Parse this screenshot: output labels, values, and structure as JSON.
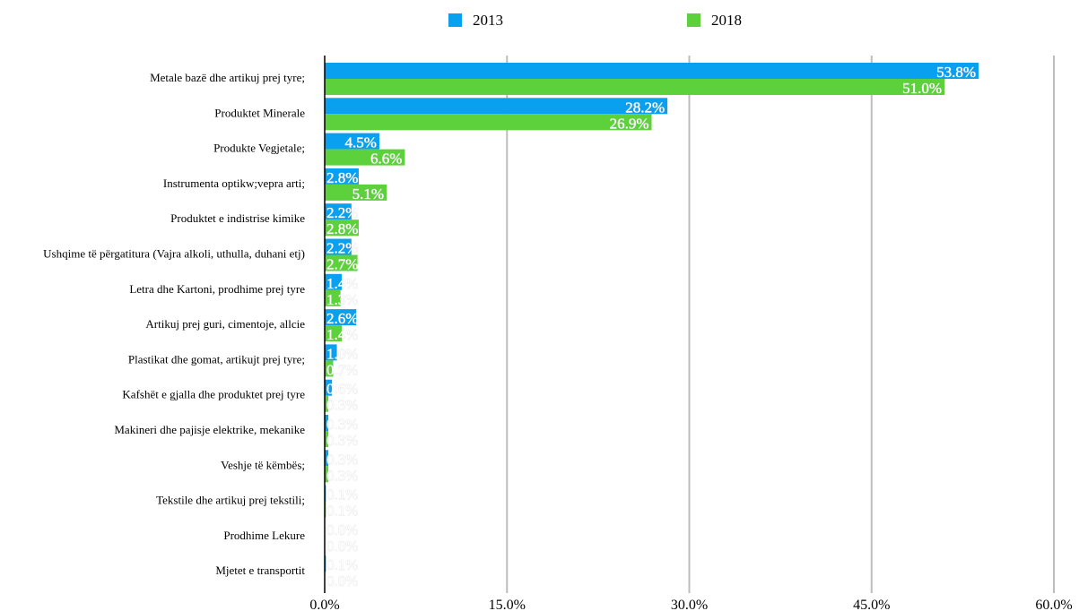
{
  "chart_data": {
    "type": "bar",
    "orientation": "horizontal",
    "categories": [
      "Metale bazë dhe artikuj prej tyre;",
      "Produktet Minerale",
      "Produkte Vegjetale;",
      "Instrumenta optikw;vepra arti;",
      "Produktet e indistrise kimike",
      "Ushqime të përgatitura (Vajra alkoli, uthulla, duhani etj)",
      "Letra dhe Kartoni, prodhime prej tyre",
      "Artikuj prej guri, cimentoje, allcie",
      "Plastikat dhe gomat, artikujt  prej tyre;",
      "Kafshët e gjalla dhe produktet prej tyre",
      "Makineri dhe pajisje elektrike, mekanike",
      "Veshje të këmbës;",
      "Tekstile dhe artikuj prej tekstili;",
      "Prodhime Lekure",
      "Mjetet e transportit"
    ],
    "series": [
      {
        "name": "2013",
        "color": "#0aa0f0",
        "values": [
          53.8,
          28.2,
          4.5,
          2.8,
          2.2,
          2.2,
          1.4,
          2.6,
          1.0,
          0.6,
          0.3,
          0.3,
          0.1,
          0.0,
          0.1
        ],
        "labels": [
          "53.8%",
          "28.2%",
          "4.5%",
          "2.8%",
          "2.2%",
          "2.2%",
          "1.4%",
          "2.6%",
          "1.0%",
          "0.6%",
          "0.3%",
          "0.3%",
          "0.1%",
          "0.0%",
          "0.1%"
        ]
      },
      {
        "name": "2018",
        "color": "#5cd13c",
        "values": [
          51.0,
          26.9,
          6.6,
          5.1,
          2.8,
          2.7,
          1.3,
          1.4,
          0.7,
          0.3,
          0.3,
          0.3,
          0.1,
          0.0,
          0.0
        ],
        "labels": [
          "51.0%",
          "26.9%",
          "6.6%",
          "5.1%",
          "2.8%",
          "2.7%",
          "1.3%",
          "1.4%",
          "0.7%",
          "0.3%",
          "0.3%",
          "0.3%",
          "0.1%",
          "0.0%",
          "0.0%"
        ]
      }
    ],
    "xlim": [
      0,
      60
    ],
    "xticks": [
      "0.0%",
      "15.0%",
      "30.0%",
      "45.0%",
      "60.0%"
    ],
    "xtick_values": [
      0,
      15,
      30,
      45,
      60
    ],
    "grid": true,
    "legend_position": "top-center"
  }
}
